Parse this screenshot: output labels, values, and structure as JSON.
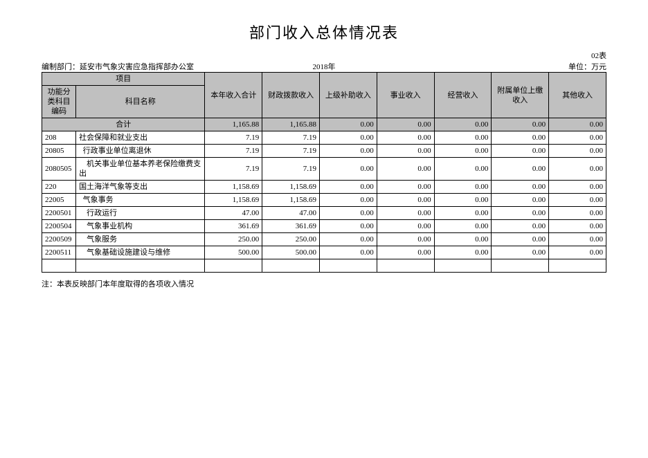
{
  "title": "部门收入总体情况表",
  "table_number": "02表",
  "meta": {
    "dept": "编制部门：延安市气象灾害应急指挥部办公室",
    "year": "2018年",
    "unit": "单位：万元"
  },
  "headers": {
    "project": "项目",
    "code": "功能分类科目编码",
    "name": "科目名称",
    "cols": [
      "本年收入合计",
      "财政拨款收入",
      "上级补助收入",
      "事业收入",
      "经营收入",
      "附属单位上缴收入",
      "其他收入"
    ]
  },
  "total_label": "合计",
  "total_values": [
    "1,165.88",
    "1,165.88",
    "0.00",
    "0.00",
    "0.00",
    "0.00",
    "0.00"
  ],
  "rows": [
    {
      "code": "208",
      "name": "社会保障和就业支出",
      "indent": 0,
      "values": [
        "7.19",
        "7.19",
        "0.00",
        "0.00",
        "0.00",
        "0.00",
        "0.00"
      ]
    },
    {
      "code": "20805",
      "name": "行政事业单位离退休",
      "indent": 1,
      "values": [
        "7.19",
        "7.19",
        "0.00",
        "0.00",
        "0.00",
        "0.00",
        "0.00"
      ]
    },
    {
      "code": "2080505",
      "name": "机关事业单位基本养老保险缴费支出",
      "indent": 2,
      "values": [
        "7.19",
        "7.19",
        "0.00",
        "0.00",
        "0.00",
        "0.00",
        "0.00"
      ]
    },
    {
      "code": "220",
      "name": "国土海洋气象等支出",
      "indent": 0,
      "values": [
        "1,158.69",
        "1,158.69",
        "0.00",
        "0.00",
        "0.00",
        "0.00",
        "0.00"
      ]
    },
    {
      "code": "22005",
      "name": "气象事务",
      "indent": 1,
      "values": [
        "1,158.69",
        "1,158.69",
        "0.00",
        "0.00",
        "0.00",
        "0.00",
        "0.00"
      ]
    },
    {
      "code": "2200501",
      "name": "行政运行",
      "indent": 2,
      "values": [
        "47.00",
        "47.00",
        "0.00",
        "0.00",
        "0.00",
        "0.00",
        "0.00"
      ]
    },
    {
      "code": "2200504",
      "name": "气象事业机构",
      "indent": 2,
      "values": [
        "361.69",
        "361.69",
        "0.00",
        "0.00",
        "0.00",
        "0.00",
        "0.00"
      ]
    },
    {
      "code": "2200509",
      "name": "气象服务",
      "indent": 2,
      "values": [
        "250.00",
        "250.00",
        "0.00",
        "0.00",
        "0.00",
        "0.00",
        "0.00"
      ]
    },
    {
      "code": "2200511",
      "name": "气象基础设施建设与维修",
      "indent": 2,
      "values": [
        "500.00",
        "500.00",
        "0.00",
        "0.00",
        "0.00",
        "0.00",
        "0.00"
      ]
    }
  ],
  "note": "注：本表反映部门本年度取得的各项收入情况",
  "style": {
    "header_bg": "#c0c0c0",
    "border_color": "#000000",
    "font_size": 11,
    "title_font_size": 22
  }
}
